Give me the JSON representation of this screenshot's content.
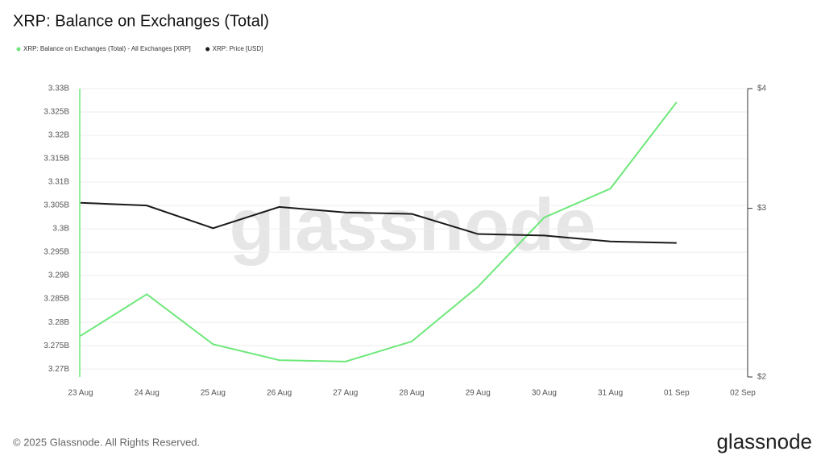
{
  "chart_data": {
    "type": "line",
    "title": "XRP: Balance on Exchanges (Total)",
    "categories": [
      "23 Aug",
      "24 Aug",
      "25 Aug",
      "26 Aug",
      "27 Aug",
      "28 Aug",
      "29 Aug",
      "30 Aug",
      "31 Aug",
      "01 Sep",
      "02 Sep"
    ],
    "series": [
      {
        "name": "XRP: Balance on Exchanges (Total) - All Exchanges [XRP]",
        "color": "#6ee87a",
        "values": [
          3277100000,
          3286000000,
          3275300000,
          3271900000,
          3271600000,
          3275900000,
          3287600000,
          3302400000,
          3308600000,
          3327100000,
          null
        ]
      },
      {
        "name": "XRP: Price [USD]",
        "color": "#1a1a1a",
        "axis": "y2",
        "values": [
          3.04,
          3.02,
          2.86,
          3.01,
          2.97,
          2.96,
          2.82,
          2.81,
          2.77,
          2.76,
          null
        ]
      }
    ],
    "ylim": [
      3268300000,
      3330000000
    ],
    "yticks": [
      {
        "value": 3270000000,
        "label": "3.27B"
      },
      {
        "value": 3275000000,
        "label": "3.275B"
      },
      {
        "value": 3280000000,
        "label": "3.28B"
      },
      {
        "value": 3285000000,
        "label": "3.285B"
      },
      {
        "value": 3290000000,
        "label": "3.29B"
      },
      {
        "value": 3295000000,
        "label": "3.295B"
      },
      {
        "value": 3300000000,
        "label": "3.3B"
      },
      {
        "value": 3305000000,
        "label": "3.305B"
      },
      {
        "value": 3310000000,
        "label": "3.31B"
      },
      {
        "value": 3315000000,
        "label": "3.315B"
      },
      {
        "value": 3320000000,
        "label": "3.32B"
      },
      {
        "value": 3325000000,
        "label": "3.325B"
      },
      {
        "value": 3330000000,
        "label": "3.33B"
      }
    ],
    "y2lim": [
      2,
      4
    ],
    "y2log": true,
    "y2ticks": [
      {
        "value": 2,
        "label": "$2"
      },
      {
        "value": 3,
        "label": "$3"
      },
      {
        "value": 4,
        "label": "$4"
      }
    ],
    "grid": true,
    "watermark": "glassnode",
    "copyright": "© 2025 Glassnode. All Rights Reserved.",
    "logo": "glassnode"
  }
}
